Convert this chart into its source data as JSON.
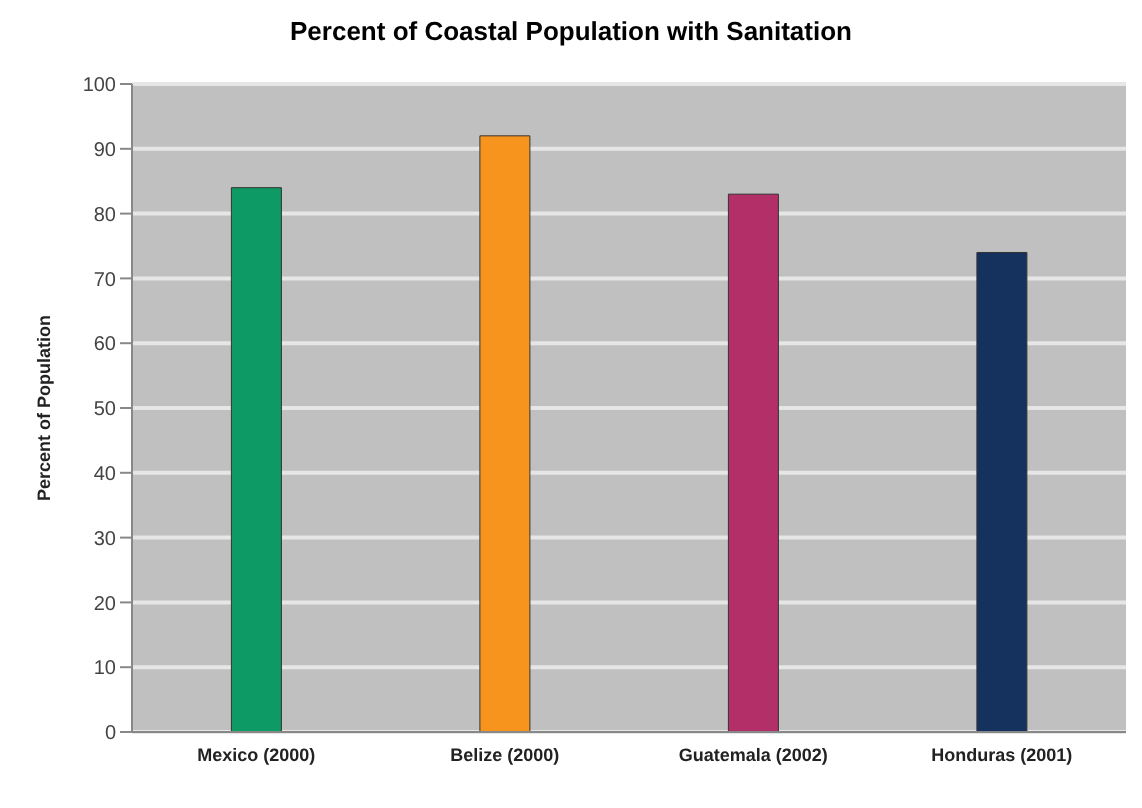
{
  "chart_data": {
    "type": "bar",
    "title": "Percent of Coastal Population with Sanitation",
    "ylabel": "Percent of Population",
    "categories": [
      "Mexico   (2000)",
      "Belize    (2000)",
      "Guatemala (2002)",
      "Honduras (2001)"
    ],
    "values": [
      84,
      92,
      83,
      74
    ],
    "colors": [
      "#0e9a64",
      "#f7941d",
      "#b22f67",
      "#15325f"
    ],
    "ylim": [
      0,
      100
    ],
    "yticks": [
      0,
      10,
      20,
      30,
      40,
      50,
      60,
      70,
      80,
      90,
      100
    ],
    "grid": "y"
  }
}
